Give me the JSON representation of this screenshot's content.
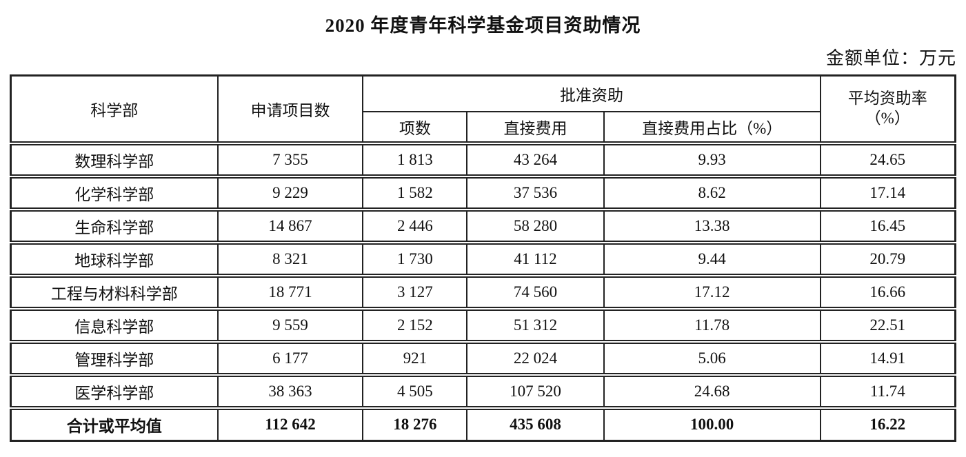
{
  "page": {
    "title": "2020 年度青年科学基金项目资助情况",
    "unit_note": "金额单位：万元"
  },
  "table": {
    "headers": {
      "dept": "科学部",
      "applications": "申请项目数",
      "approved": "批准资助",
      "count": "项数",
      "direct_cost": "直接费用",
      "direct_cost_pct": "直接费用占比（%）",
      "avg_rate": "平均资助率\n（%）"
    },
    "rows": [
      {
        "dept": "数理科学部",
        "applications": "7 355",
        "count": "1 813",
        "direct_cost": "43 264",
        "pct": "9.93",
        "rate": "24.65"
      },
      {
        "dept": "化学科学部",
        "applications": "9 229",
        "count": "1 582",
        "direct_cost": "37 536",
        "pct": "8.62",
        "rate": "17.14"
      },
      {
        "dept": "生命科学部",
        "applications": "14 867",
        "count": "2 446",
        "direct_cost": "58 280",
        "pct": "13.38",
        "rate": "16.45"
      },
      {
        "dept": "地球科学部",
        "applications": "8 321",
        "count": "1 730",
        "direct_cost": "41 112",
        "pct": "9.44",
        "rate": "20.79"
      },
      {
        "dept": "工程与材料科学部",
        "applications": "18 771",
        "count": "3 127",
        "direct_cost": "74 560",
        "pct": "17.12",
        "rate": "16.66"
      },
      {
        "dept": "信息科学部",
        "applications": "9 559",
        "count": "2 152",
        "direct_cost": "51 312",
        "pct": "11.78",
        "rate": "22.51"
      },
      {
        "dept": "管理科学部",
        "applications": "6 177",
        "count": "921",
        "direct_cost": "22 024",
        "pct": "5.06",
        "rate": "14.91"
      },
      {
        "dept": "医学科学部",
        "applications": "38 363",
        "count": "4 505",
        "direct_cost": "107 520",
        "pct": "24.68",
        "rate": "11.74"
      }
    ],
    "total": {
      "dept": "合计或平均值",
      "applications": "112 642",
      "count": "18 276",
      "direct_cost": "435 608",
      "pct": "100.00",
      "rate": "16.22"
    }
  },
  "colors": {
    "border": "#222222",
    "text": "#111111",
    "background": "#ffffff"
  }
}
